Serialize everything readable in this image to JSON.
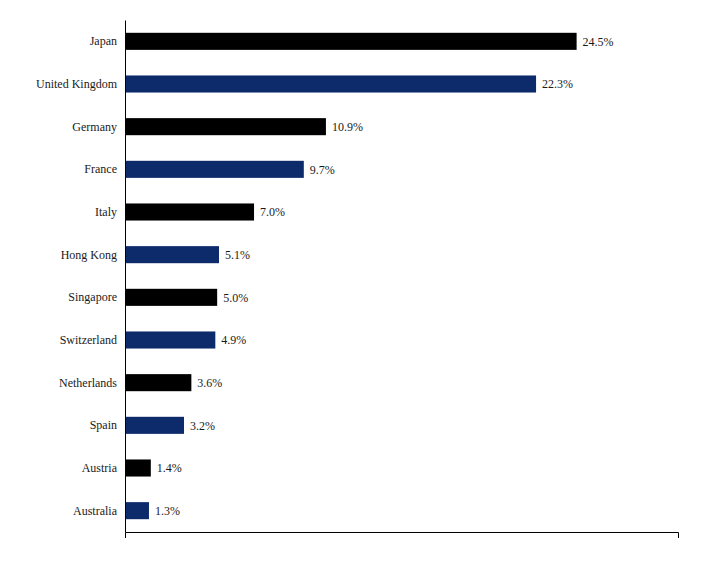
{
  "chart_data": {
    "type": "bar",
    "orientation": "horizontal",
    "categories": [
      "Australia",
      "Austria",
      "Spain",
      "Netherlands",
      "Switzerland",
      "Singapore",
      "Hong Kong",
      "Italy",
      "France",
      "Germany",
      "United Kingdom",
      "Japan"
    ],
    "values": [
      1.3,
      1.4,
      3.2,
      3.6,
      4.9,
      5.0,
      5.1,
      7.0,
      9.7,
      10.9,
      22.3,
      24.5
    ],
    "value_labels": [
      "1.3%",
      "1.4%",
      "3.2%",
      "3.6%",
      "4.9%",
      "5.0%",
      "5.1%",
      "7.0%",
      "9.7%",
      "10.9%",
      "22.3%",
      "24.5%"
    ],
    "colors": [
      "#0d2b6b",
      "#000000",
      "#0d2b6b",
      "#000000",
      "#0d2b6b",
      "#000000",
      "#0d2b6b",
      "#000000",
      "#0d2b6b",
      "#000000",
      "#0d2b6b",
      "#000000"
    ],
    "xlim": [
      0,
      30
    ],
    "data_labels": true,
    "tick_labels": "y",
    "grid": false
  }
}
